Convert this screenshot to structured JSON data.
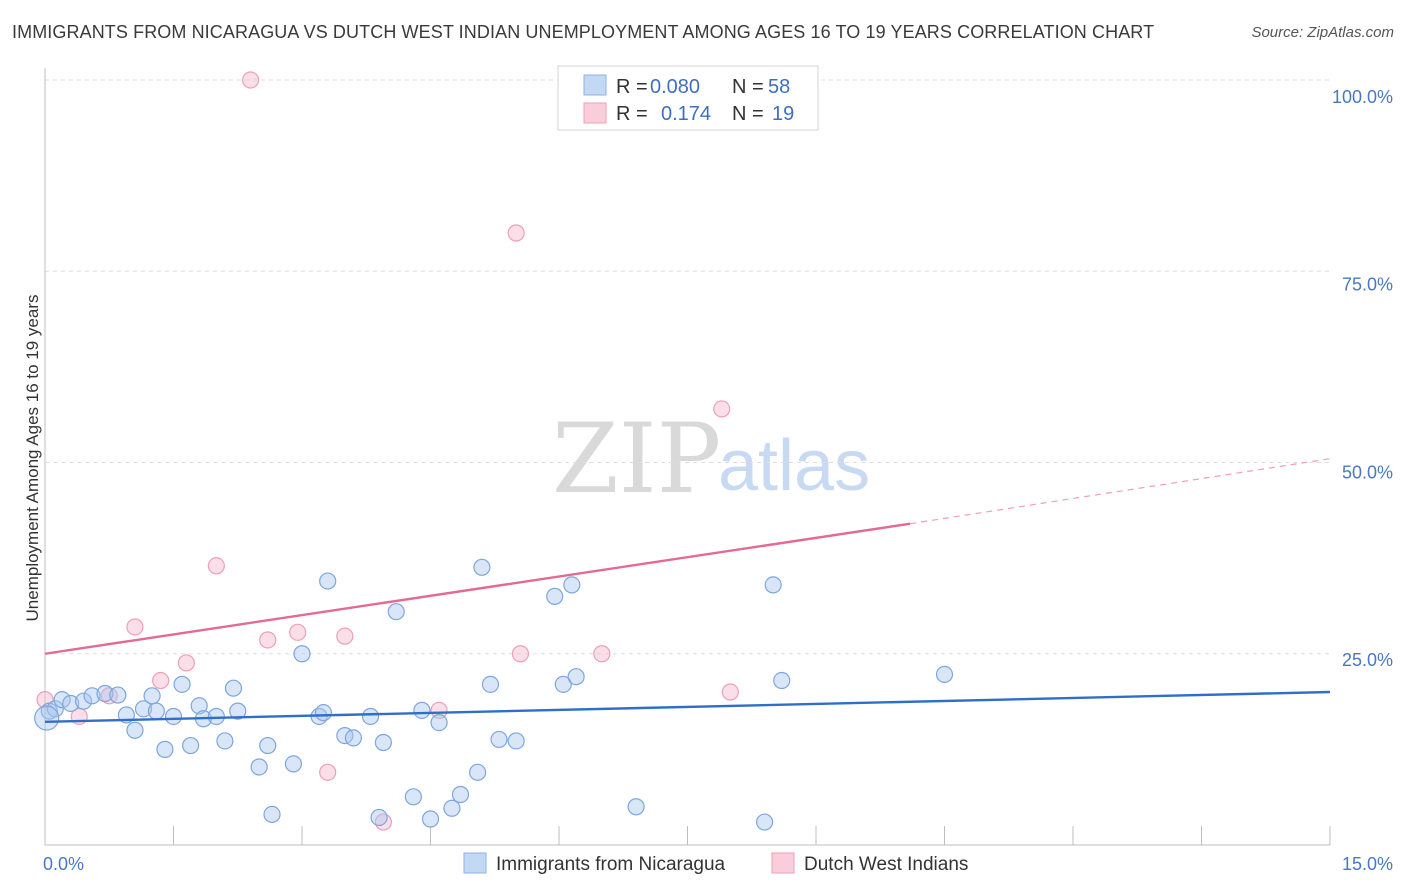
{
  "title": "IMMIGRANTS FROM NICARAGUA VS DUTCH WEST INDIAN UNEMPLOYMENT AMONG AGES 16 TO 19 YEARS CORRELATION CHART",
  "source": "Source: ZipAtlas.com",
  "watermark": {
    "zip": "ZIP",
    "atlas": "atlas"
  },
  "colors": {
    "nicaragua": "#a9c8ef",
    "nicaragua_line": "#2f6fc8",
    "dutch": "#f6b8cb",
    "dutch_line": "#e46a92",
    "axis_text": "#4a78c0"
  },
  "legend": {
    "rows": [
      {
        "r_label": "R =",
        "r_value": "0.080",
        "n_label": "N =",
        "n_value": "58"
      },
      {
        "r_label": "R =",
        "r_value": "0.174",
        "n_label": "N =",
        "n_value": "19"
      }
    ]
  },
  "chart_data": {
    "type": "scatter",
    "title": "IMMIGRANTS FROM NICARAGUA VS DUTCH WEST INDIAN UNEMPLOYMENT AMONG AGES 16 TO 19 YEARS CORRELATION CHART",
    "xlabel": "",
    "ylabel": "Unemployment Among Ages 16 to 19 years",
    "xlim": [
      0,
      15
    ],
    "ylim": [
      0,
      100
    ],
    "x_tick_labels": [
      "0.0%",
      "15.0%"
    ],
    "y_ticks": [
      25,
      50,
      75,
      100
    ],
    "y_tick_labels": [
      "25.0%",
      "50.0%",
      "75.0%",
      "100.0%"
    ],
    "grid": true,
    "series": [
      {
        "name": "Immigrants from Nicaragua",
        "trend": {
          "x": [
            0,
            15
          ],
          "y": [
            16.1,
            20.0
          ]
        },
        "points": [
          [
            0.05,
            17.5
          ],
          [
            0.12,
            17.8
          ],
          [
            0.2,
            19.0
          ],
          [
            0.3,
            18.5
          ],
          [
            0.45,
            18.8
          ],
          [
            0.55,
            19.5
          ],
          [
            0.7,
            19.8
          ],
          [
            0.85,
            19.6
          ],
          [
            0.95,
            17.0
          ],
          [
            1.05,
            15.0
          ],
          [
            1.15,
            17.8
          ],
          [
            1.25,
            19.5
          ],
          [
            1.3,
            17.5
          ],
          [
            1.4,
            12.5
          ],
          [
            1.5,
            16.8
          ],
          [
            1.6,
            21.0
          ],
          [
            1.7,
            13.0
          ],
          [
            1.8,
            18.2
          ],
          [
            1.85,
            16.5
          ],
          [
            2.0,
            16.8
          ],
          [
            2.1,
            13.6
          ],
          [
            2.2,
            20.5
          ],
          [
            2.25,
            17.5
          ],
          [
            2.5,
            10.2
          ],
          [
            2.6,
            13.0
          ],
          [
            2.65,
            4.0
          ],
          [
            2.9,
            10.6
          ],
          [
            3.0,
            25.0
          ],
          [
            3.2,
            16.8
          ],
          [
            3.25,
            17.3
          ],
          [
            3.3,
            34.5
          ],
          [
            3.5,
            14.3
          ],
          [
            3.6,
            14.0
          ],
          [
            3.8,
            16.8
          ],
          [
            3.9,
            3.6
          ],
          [
            3.95,
            13.4
          ],
          [
            4.1,
            30.5
          ],
          [
            4.3,
            6.3
          ],
          [
            4.4,
            17.6
          ],
          [
            4.5,
            3.4
          ],
          [
            4.6,
            16.0
          ],
          [
            4.75,
            4.8
          ],
          [
            4.85,
            6.6
          ],
          [
            5.05,
            9.5
          ],
          [
            5.1,
            36.3
          ],
          [
            5.2,
            21.0
          ],
          [
            5.3,
            13.8
          ],
          [
            5.5,
            13.6
          ],
          [
            5.95,
            32.5
          ],
          [
            6.05,
            21.0
          ],
          [
            6.15,
            34.0
          ],
          [
            6.2,
            22.0
          ],
          [
            6.9,
            5.0
          ],
          [
            8.4,
            3.0
          ],
          [
            8.5,
            34.0
          ],
          [
            8.6,
            21.5
          ],
          [
            10.5,
            22.3
          ],
          [
            0.02,
            16.6
          ]
        ]
      },
      {
        "name": "Dutch West Indians",
        "trend": {
          "x": [
            0,
            10.1
          ],
          "y": [
            25.0,
            42.0
          ],
          "dashed_to": {
            "x": 15,
            "y": 50.5
          }
        },
        "points": [
          [
            0.0,
            19.0
          ],
          [
            0.4,
            16.8
          ],
          [
            0.75,
            19.5
          ],
          [
            1.05,
            28.5
          ],
          [
            1.35,
            21.5
          ],
          [
            1.65,
            23.8
          ],
          [
            2.0,
            36.5
          ],
          [
            2.6,
            26.8
          ],
          [
            2.95,
            27.8
          ],
          [
            3.3,
            9.5
          ],
          [
            3.5,
            27.3
          ],
          [
            3.95,
            3.0
          ],
          [
            4.6,
            17.6
          ],
          [
            5.5,
            80.0
          ],
          [
            5.55,
            25.0
          ],
          [
            6.5,
            25.0
          ],
          [
            7.9,
            57.0
          ],
          [
            8.0,
            20.0
          ],
          [
            2.4,
            100.0
          ]
        ]
      }
    ]
  },
  "bottom_legend": {
    "nicaragua_label": "Immigrants from Nicaragua",
    "dutch_label": "Dutch West Indians"
  }
}
